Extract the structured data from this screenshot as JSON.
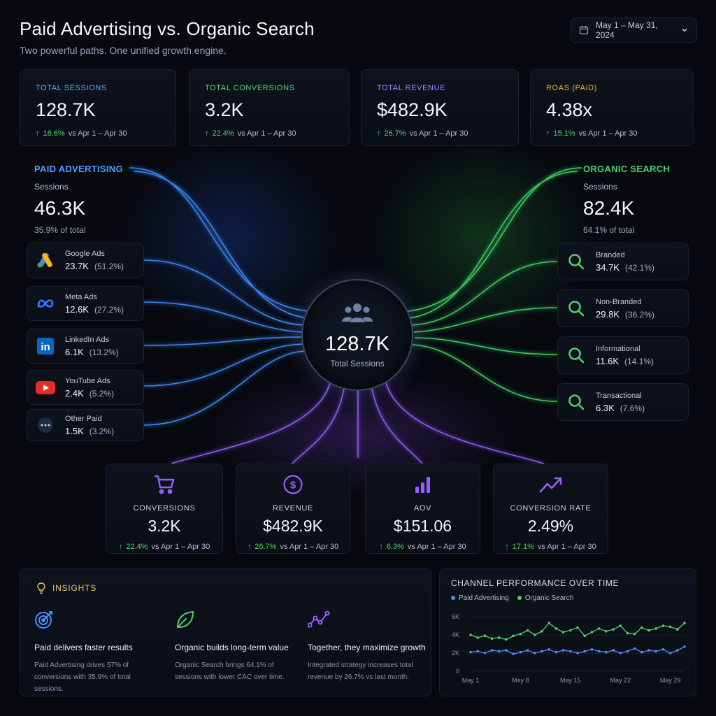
{
  "header": {
    "title": "Paid Advertising vs. Organic Search",
    "subtitle": "Two powerful paths. One unified growth engine.",
    "date_range": "May 1 – May 31, 2024"
  },
  "kpis": [
    {
      "label": "TOTAL SESSIONS",
      "value": "128.7K",
      "delta": "18.6%",
      "compare": "vs Apr 1 – Apr 30",
      "color": "#5ea8ff"
    },
    {
      "label": "TOTAL CONVERSIONS",
      "value": "3.2K",
      "delta": "22.4%",
      "compare": "vs Apr 1 – Apr 30",
      "color": "#5ed57a"
    },
    {
      "label": "TOTAL REVENUE",
      "value": "$482.9K",
      "delta": "26.7%",
      "compare": "vs Apr 1 – Apr 30",
      "color": "#a984ff"
    },
    {
      "label": "ROAS (PAID)",
      "value": "4.38x",
      "delta": "15.1%",
      "compare": "vs Apr 1 – Apr 30",
      "color": "#f0b34a"
    }
  ],
  "paid": {
    "title": "PAID ADVERTISING",
    "sessions_label": "Sessions",
    "sessions": "46.3K",
    "share": "35.9% of total",
    "color": "#4d9bff",
    "sources": [
      {
        "name": "Google Ads",
        "value": "23.7K",
        "pct": "(51.2%)",
        "icon": "google-ads-icon"
      },
      {
        "name": "Meta Ads",
        "value": "12.6K",
        "pct": "(27.2%)",
        "icon": "meta-icon"
      },
      {
        "name": "LinkedIn Ads",
        "value": "6.1K",
        "pct": "(13.2%)",
        "icon": "linkedin-icon"
      },
      {
        "name": "YouTube Ads",
        "value": "2.4K",
        "pct": "(5.2%)",
        "icon": "youtube-icon"
      },
      {
        "name": "Other Paid",
        "value": "1.5K",
        "pct": "(3.2%)",
        "icon": "more-icon"
      }
    ]
  },
  "organic": {
    "title": "ORGANIC SEARCH",
    "sessions_label": "Sessions",
    "sessions": "82.4K",
    "share": "64.1% of total",
    "color": "#4fd16a",
    "sources": [
      {
        "name": "Branded",
        "value": "34.7K",
        "pct": "(42.1%)",
        "icon": "search-icon"
      },
      {
        "name": "Non-Branded",
        "value": "29.8K",
        "pct": "(36.2%)",
        "icon": "search-icon"
      },
      {
        "name": "Informational",
        "value": "11.6K",
        "pct": "(14.1%)",
        "icon": "search-icon"
      },
      {
        "name": "Transactional",
        "value": "6.3K",
        "pct": "(7.6%)",
        "icon": "search-icon"
      }
    ]
  },
  "hub": {
    "value": "128.7K",
    "label": "Total Sessions",
    "icon": "users-icon"
  },
  "metrics": [
    {
      "label": "CONVERSIONS",
      "value": "3.2K",
      "delta": "22.4%",
      "compare": "vs Apr 1 – Apr 30",
      "icon": "cart-icon"
    },
    {
      "label": "REVENUE",
      "value": "$482.9K",
      "delta": "26.7%",
      "compare": "vs Apr 1 – Apr 30",
      "icon": "dollar-icon"
    },
    {
      "label": "AOV",
      "value": "$151.06",
      "delta": "6.3%",
      "compare": "vs Apr 1 – Apr 30",
      "icon": "bar-chart-icon"
    },
    {
      "label": "CONVERSION RATE",
      "value": "2.49%",
      "delta": "17.1%",
      "compare": "vs Apr 1 – Apr 30",
      "icon": "trend-up-icon"
    }
  ],
  "insights": {
    "title": "INSIGHTS",
    "items": [
      {
        "title": "Paid delivers faster results",
        "desc": "Paid Advertising drives 57% of conversions with 35.9% of total sessions.",
        "icon": "target-icon"
      },
      {
        "title": "Organic builds long-term value",
        "desc": "Organic Search brings 64.1% of sessions with lower CAC over time.",
        "icon": "leaf-icon"
      },
      {
        "title": "Together, they maximize growth",
        "desc": "Integrated strategy increases total revenue by 26.7% vs last month.",
        "icon": "network-icon"
      }
    ]
  },
  "chart_data": {
    "type": "line",
    "title": "CHANNEL PERFORMANCE OVER TIME",
    "x": [
      1,
      2,
      3,
      4,
      5,
      6,
      7,
      8,
      9,
      10,
      11,
      12,
      13,
      14,
      15,
      16,
      17,
      18,
      19,
      20,
      21,
      22,
      23,
      24,
      25,
      26,
      27,
      28,
      29,
      30,
      31
    ],
    "xticks": [
      "May 1",
      "May 8",
      "May 15",
      "May 22",
      "May 29"
    ],
    "xtick_positions": [
      1,
      8,
      15,
      22,
      29
    ],
    "yticks": [
      "0",
      "2K",
      "4K",
      "6K"
    ],
    "ylim": [
      0,
      6000
    ],
    "grid": true,
    "legend_placement": "top-left",
    "series": [
      {
        "name": "Paid Advertising",
        "color": "#4d8cff",
        "values": [
          2100,
          2200,
          2000,
          2300,
          2200,
          2300,
          1900,
          2100,
          2300,
          2000,
          2200,
          2400,
          2100,
          2300,
          2200,
          2000,
          2200,
          2400,
          2200,
          2100,
          2300,
          2000,
          2200,
          2500,
          2100,
          2300,
          2200,
          2400,
          2000,
          2300,
          2700
        ]
      },
      {
        "name": "Organic Search",
        "color": "#4fd16a",
        "values": [
          4000,
          3700,
          3900,
          3600,
          3700,
          3500,
          3900,
          4100,
          4500,
          4000,
          4400,
          5300,
          4700,
          4300,
          4500,
          4800,
          3900,
          4300,
          4700,
          4400,
          4600,
          5000,
          4200,
          4100,
          4800,
          4500,
          4700,
          5000,
          4900,
          4600,
          5300
        ]
      }
    ]
  }
}
